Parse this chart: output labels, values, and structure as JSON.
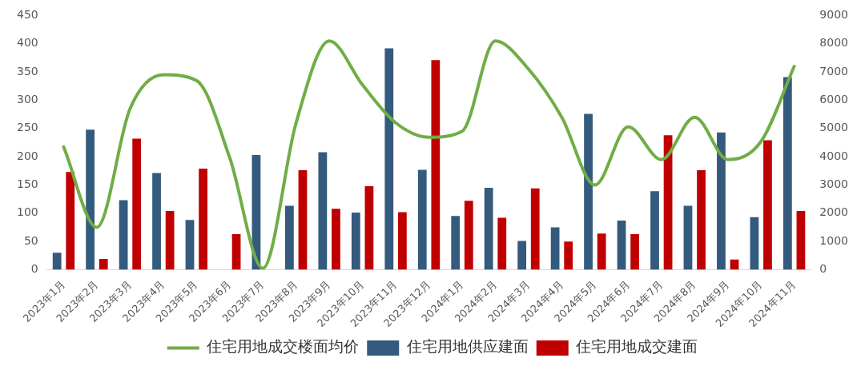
{
  "chart_data": {
    "type": "bar",
    "categories": [
      "2023年1月",
      "2023年2月",
      "2023年3月",
      "2023年4月",
      "2023年5月",
      "2023年6月",
      "2023年7月",
      "2023年8月",
      "2023年9月",
      "2023年10月",
      "2023年11月",
      "2023年12月",
      "2024年1月",
      "2024年2月",
      "2024年3月",
      "2024年4月",
      "2024年5月",
      "2024年6月",
      "2024年7月",
      "2024年8月",
      "2024年9月",
      "2024年10月",
      "2024年11月"
    ],
    "series": [
      {
        "name": "住宅用地供应建面",
        "color": "#345a7e",
        "values": [
          30,
          248,
          123,
          171,
          88,
          0,
          203,
          113,
          208,
          101,
          392,
          177,
          95,
          145,
          51,
          75,
          276,
          87,
          139,
          113,
          243,
          93,
          341
        ]
      },
      {
        "name": "住宅用地成交建面",
        "color": "#c00000",
        "values": [
          173,
          19,
          232,
          104,
          179,
          63,
          0,
          176,
          108,
          148,
          102,
          371,
          122,
          92,
          144,
          50,
          64,
          63,
          238,
          176,
          18,
          229,
          104
        ]
      },
      {
        "name": "住宅用地成交楼面均价",
        "type": "line",
        "axis": "y2",
        "color": "#70ad47",
        "values": [
          4350,
          1500,
          5700,
          6900,
          6700,
          3970,
          50,
          5200,
          8100,
          6540,
          5200,
          4690,
          4900,
          8100,
          7100,
          5400,
          3000,
          5060,
          3900,
          5400,
          3900,
          4540,
          7200
        ]
      }
    ],
    "ylim": [
      0,
      450
    ],
    "yticks": [
      0,
      50,
      100,
      150,
      200,
      250,
      300,
      350,
      400,
      450
    ],
    "y2lim": [
      0,
      9000
    ],
    "y2ticks": [
      0,
      1000,
      2000,
      3000,
      4000,
      5000,
      6000,
      7000,
      8000,
      9000
    ],
    "grid": false,
    "legend": "bottom",
    "marker": "none"
  }
}
